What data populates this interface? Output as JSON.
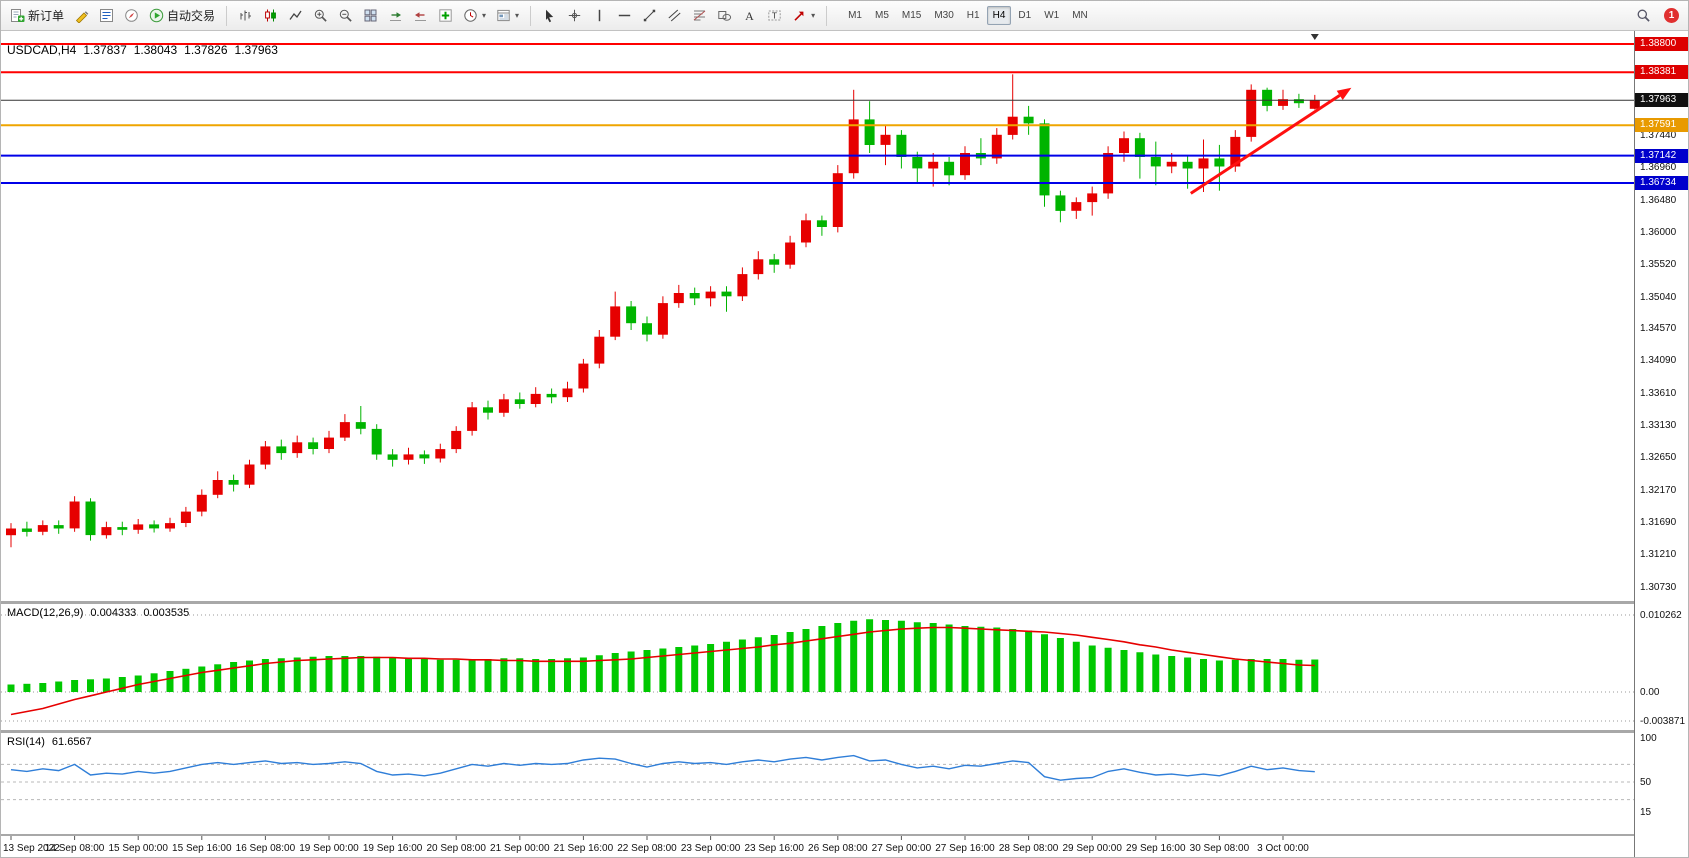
{
  "toolbar": {
    "groups": [
      {
        "type": "labeled",
        "name": "new-order-button",
        "icon": "new-order-icon",
        "label": "新订单"
      },
      {
        "type": "icon",
        "name": "metaeditor-button",
        "icon": "metaeditor-icon"
      },
      {
        "type": "icon",
        "name": "market-watch-button",
        "icon": "market-watch-icon"
      },
      {
        "type": "icon",
        "name": "navigator-button",
        "icon": "navigator-icon"
      },
      {
        "type": "labeled",
        "name": "auto-trading-button",
        "icon": "auto-trading-icon",
        "label": "自动交易"
      },
      {
        "type": "sep"
      },
      {
        "type": "icon",
        "name": "bar-chart-button",
        "icon": "bar-chart-icon"
      },
      {
        "type": "icon",
        "name": "candlestick-chart-button",
        "icon": "candlestick-chart-icon"
      },
      {
        "type": "icon",
        "name": "line-chart-button",
        "icon": "line-chart-icon"
      },
      {
        "type": "icon",
        "name": "zoom-in-button",
        "icon": "zoom-in-icon"
      },
      {
        "type": "icon",
        "name": "zoom-out-button",
        "icon": "zoom-out-icon"
      },
      {
        "type": "icon",
        "name": "tile-windows-button",
        "icon": "tile-windows-icon"
      },
      {
        "type": "icon",
        "name": "auto-scroll-button",
        "icon": "auto-scroll-icon"
      },
      {
        "type": "icon",
        "name": "chart-shift-button",
        "icon": "chart-shift-icon"
      },
      {
        "type": "icon",
        "name": "indicators-button",
        "icon": "indicators-icon"
      },
      {
        "type": "icon",
        "name": "periods-button",
        "icon": "periods-icon",
        "caret": true
      },
      {
        "type": "icon",
        "name": "templates-button",
        "icon": "templates-icon",
        "caret": true
      },
      {
        "type": "sep"
      },
      {
        "type": "icon",
        "name": "cursor-button",
        "icon": "cursor-icon"
      },
      {
        "type": "icon",
        "name": "crosshair-button",
        "icon": "crosshair-icon"
      },
      {
        "type": "icon",
        "name": "vertical-line-button",
        "icon": "vertical-line-icon"
      },
      {
        "type": "icon",
        "name": "horizontal-line-button",
        "icon": "horizontal-line-icon"
      },
      {
        "type": "icon",
        "name": "trendline-button",
        "icon": "trendline-icon"
      },
      {
        "type": "icon",
        "name": "channel-button",
        "icon": "channel-icon"
      },
      {
        "type": "icon",
        "name": "fibonacci-button",
        "icon": "fibonacci-icon"
      },
      {
        "type": "icon",
        "name": "shapes-button",
        "icon": "shapes-icon"
      },
      {
        "type": "icon",
        "name": "text-button",
        "icon": "text-icon"
      },
      {
        "type": "icon",
        "name": "text-label-button",
        "icon": "text-label-icon"
      },
      {
        "type": "icon",
        "name": "arrows-button",
        "icon": "arrows-icon",
        "caret": true
      },
      {
        "type": "sep"
      }
    ],
    "timeframes": {
      "items": [
        "M1",
        "M5",
        "M15",
        "M30",
        "H1",
        "H4",
        "D1",
        "W1",
        "MN"
      ],
      "active": "H4"
    },
    "notification_badge": "1"
  },
  "main_chart": {
    "symbol": "USDCAD,H4",
    "open": "1.37837",
    "high": "1.38043",
    "low": "1.37826",
    "close": "1.37963"
  },
  "macd": {
    "name": "MACD(12,26,9)",
    "value_main": "0.004333",
    "value_signal": "0.003535"
  },
  "rsi": {
    "name": "RSI(14)",
    "value": "61.6567"
  },
  "chart_data": [
    {
      "type": "candlestick",
      "symbol": "USDCAD",
      "timeframe": "H4",
      "ylim": [
        1.3073,
        1.388
      ],
      "colors": {
        "up": "#e60000",
        "down": "#00b400"
      },
      "candles": [
        [
          1.315,
          1.3168,
          1.3132,
          1.316
        ],
        [
          1.316,
          1.317,
          1.3148,
          1.3155
        ],
        [
          1.3155,
          1.3172,
          1.315,
          1.3165
        ],
        [
          1.3165,
          1.3172,
          1.3152,
          1.316
        ],
        [
          1.316,
          1.3208,
          1.3155,
          1.32
        ],
        [
          1.32,
          1.3205,
          1.3142,
          1.315
        ],
        [
          1.315,
          1.317,
          1.3145,
          1.3162
        ],
        [
          1.3162,
          1.317,
          1.315,
          1.3158
        ],
        [
          1.3158,
          1.3174,
          1.3152,
          1.3166
        ],
        [
          1.3166,
          1.3172,
          1.3154,
          1.316
        ],
        [
          1.316,
          1.3176,
          1.3155,
          1.3168
        ],
        [
          1.3168,
          1.3192,
          1.3162,
          1.3185
        ],
        [
          1.3185,
          1.3218,
          1.3178,
          1.321
        ],
        [
          1.321,
          1.3245,
          1.3205,
          1.3232
        ],
        [
          1.3232,
          1.324,
          1.3215,
          1.3225
        ],
        [
          1.3225,
          1.3262,
          1.322,
          1.3255
        ],
        [
          1.3255,
          1.329,
          1.3248,
          1.3282
        ],
        [
          1.3282,
          1.3292,
          1.3262,
          1.3272
        ],
        [
          1.3272,
          1.3298,
          1.3265,
          1.3288
        ],
        [
          1.3288,
          1.3295,
          1.327,
          1.3278
        ],
        [
          1.3278,
          1.3305,
          1.3272,
          1.3295
        ],
        [
          1.3295,
          1.333,
          1.329,
          1.3318
        ],
        [
          1.3318,
          1.3342,
          1.33,
          1.3308
        ],
        [
          1.3308,
          1.3315,
          1.3262,
          1.327
        ],
        [
          1.327,
          1.3278,
          1.3252,
          1.3262
        ],
        [
          1.3262,
          1.328,
          1.3255,
          1.327
        ],
        [
          1.327,
          1.3276,
          1.3256,
          1.3264
        ],
        [
          1.3264,
          1.3286,
          1.3258,
          1.3278
        ],
        [
          1.3278,
          1.3312,
          1.3272,
          1.3305
        ],
        [
          1.3305,
          1.3348,
          1.3298,
          1.334
        ],
        [
          1.334,
          1.335,
          1.3322,
          1.3332
        ],
        [
          1.3332,
          1.336,
          1.3326,
          1.3352
        ],
        [
          1.3352,
          1.3362,
          1.3338,
          1.3345
        ],
        [
          1.3345,
          1.337,
          1.334,
          1.336
        ],
        [
          1.336,
          1.3368,
          1.3346,
          1.3355
        ],
        [
          1.3355,
          1.3378,
          1.3348,
          1.3368
        ],
        [
          1.3368,
          1.3412,
          1.3362,
          1.3405
        ],
        [
          1.3405,
          1.3455,
          1.3398,
          1.3445
        ],
        [
          1.3445,
          1.3512,
          1.344,
          1.349
        ],
        [
          1.349,
          1.3498,
          1.3455,
          1.3465
        ],
        [
          1.3465,
          1.3475,
          1.3438,
          1.3448
        ],
        [
          1.3448,
          1.3505,
          1.3442,
          1.3495
        ],
        [
          1.3495,
          1.3522,
          1.3488,
          1.351
        ],
        [
          1.351,
          1.3518,
          1.3492,
          1.3502
        ],
        [
          1.3502,
          1.352,
          1.349,
          1.3512
        ],
        [
          1.3512,
          1.352,
          1.3482,
          1.3505
        ],
        [
          1.3505,
          1.3548,
          1.3498,
          1.3538
        ],
        [
          1.3538,
          1.3572,
          1.353,
          1.356
        ],
        [
          1.356,
          1.3568,
          1.354,
          1.3552
        ],
        [
          1.3552,
          1.3595,
          1.3546,
          1.3585
        ],
        [
          1.3585,
          1.3628,
          1.3578,
          1.3618
        ],
        [
          1.3618,
          1.3625,
          1.3595,
          1.3608
        ],
        [
          1.3608,
          1.37,
          1.36,
          1.3688
        ],
        [
          1.3688,
          1.3812,
          1.368,
          1.3768
        ],
        [
          1.3768,
          1.3795,
          1.3718,
          1.373
        ],
        [
          1.373,
          1.376,
          1.37,
          1.3745
        ],
        [
          1.3745,
          1.3752,
          1.3695,
          1.3712
        ],
        [
          1.3712,
          1.372,
          1.3672,
          1.3695
        ],
        [
          1.3695,
          1.3718,
          1.3668,
          1.3705
        ],
        [
          1.3705,
          1.3712,
          1.367,
          1.3685
        ],
        [
          1.3685,
          1.3728,
          1.3678,
          1.3718
        ],
        [
          1.3718,
          1.374,
          1.37,
          1.371
        ],
        [
          1.371,
          1.3755,
          1.3702,
          1.3745
        ],
        [
          1.3745,
          1.3835,
          1.3738,
          1.3772
        ],
        [
          1.3772,
          1.3788,
          1.3745,
          1.3762
        ],
        [
          1.3762,
          1.3768,
          1.3638,
          1.3655
        ],
        [
          1.3655,
          1.3662,
          1.3615,
          1.3632
        ],
        [
          1.3632,
          1.3652,
          1.362,
          1.3645
        ],
        [
          1.3645,
          1.3668,
          1.3625,
          1.3658
        ],
        [
          1.3658,
          1.3728,
          1.365,
          1.3718
        ],
        [
          1.3718,
          1.375,
          1.3705,
          1.374
        ],
        [
          1.374,
          1.3748,
          1.368,
          1.3712
        ],
        [
          1.3712,
          1.3735,
          1.367,
          1.3698
        ],
        [
          1.3698,
          1.3718,
          1.3688,
          1.3705
        ],
        [
          1.3705,
          1.3715,
          1.3665,
          1.3695
        ],
        [
          1.3695,
          1.3738,
          1.366,
          1.371
        ],
        [
          1.371,
          1.373,
          1.3662,
          1.3698
        ],
        [
          1.3698,
          1.3752,
          1.369,
          1.3742
        ],
        [
          1.3742,
          1.382,
          1.3735,
          1.3812
        ],
        [
          1.3812,
          1.3815,
          1.378,
          1.3788
        ],
        [
          1.3788,
          1.3812,
          1.3782,
          1.3798
        ],
        [
          1.3798,
          1.3806,
          1.3785,
          1.3792
        ],
        [
          1.37837,
          1.38043,
          1.37826,
          1.37963
        ]
      ],
      "levels": [
        {
          "price": 1.388,
          "label": "1.38800",
          "color": "#ff0000",
          "label_bg": "#dd0000",
          "width": 2
        },
        {
          "price": 1.38381,
          "label": "1.38381",
          "color": "#ff0000",
          "label_bg": "#dd0000",
          "width": 2
        },
        {
          "price": 1.37963,
          "label": "1.37963",
          "color": "#333333",
          "label_bg": "#111111",
          "width": 1,
          "current": true
        },
        {
          "price": 1.37591,
          "label": "1.37591",
          "color": "#efa500",
          "label_bg": "#e89a00",
          "width": 2
        },
        {
          "price": 1.37142,
          "label": "1.37142",
          "color": "#0000e8",
          "label_bg": "#0000cc",
          "width": 2
        },
        {
          "price": 1.36734,
          "label": "1.36734",
          "color": "#0000e8",
          "label_bg": "#0000cc",
          "width": 2
        }
      ],
      "y_ticks": [
        "1.37440",
        "1.36960",
        "1.36480",
        "1.36000",
        "1.35520",
        "1.35040",
        "1.34570",
        "1.34090",
        "1.33610",
        "1.33130",
        "1.32650",
        "1.32170",
        "1.31690",
        "1.31210",
        "1.30730"
      ],
      "time_labels": [
        {
          "idx": 0,
          "label": "13 Sep 2022"
        },
        {
          "idx": 4,
          "label": "14 Sep 08:00"
        },
        {
          "idx": 8,
          "label": "15 Sep 00:00"
        },
        {
          "idx": 12,
          "label": "15 Sep 16:00"
        },
        {
          "idx": 16,
          "label": "16 Sep 08:00"
        },
        {
          "idx": 20,
          "label": "19 Sep 00:00"
        },
        {
          "idx": 24,
          "label": "19 Sep 16:00"
        },
        {
          "idx": 28,
          "label": "20 Sep 08:00"
        },
        {
          "idx": 32,
          "label": "21 Sep 00:00"
        },
        {
          "idx": 36,
          "label": "21 Sep 16:00"
        },
        {
          "idx": 40,
          "label": "22 Sep 08:00"
        },
        {
          "idx": 44,
          "label": "23 Sep 00:00"
        },
        {
          "idx": 48,
          "label": "23 Sep 16:00"
        },
        {
          "idx": 52,
          "label": "26 Sep 08:00"
        },
        {
          "idx": 56,
          "label": "27 Sep 00:00"
        },
        {
          "idx": 60,
          "label": "27 Sep 16:00"
        },
        {
          "idx": 64,
          "label": "28 Sep 08:00"
        },
        {
          "idx": 68,
          "label": "29 Sep 00:00"
        },
        {
          "idx": 72,
          "label": "29 Sep 16:00"
        },
        {
          "idx": 76,
          "label": "30 Sep 08:00"
        },
        {
          "idx": 80,
          "label": "3 Oct 00:00"
        }
      ],
      "arrow": {
        "from": {
          "idx": 74.2,
          "price": 1.3658
        },
        "to": {
          "idx": 84.3,
          "price": 1.3815
        },
        "color": "#ff1010"
      },
      "marker_idx": 82
    },
    {
      "type": "bar",
      "name": "MACD(12,26,9)",
      "current": [
        0.004333,
        0.003535
      ],
      "ylim": [
        -0.003871,
        0.010262
      ],
      "grid": [
        0.010262,
        0,
        -0.003871
      ],
      "axis_labels": [
        {
          "text": "0.010262",
          "v": 0.010262
        },
        {
          "text": "0.00",
          "v": 0
        },
        {
          "text": "-0.003871",
          "v": -0.003871
        }
      ],
      "colors": {
        "histogram": "#00c800",
        "signal": "#e60000"
      },
      "values": [
        0.001,
        0.0011,
        0.0012,
        0.0014,
        0.0016,
        0.0017,
        0.0018,
        0.002,
        0.0022,
        0.0025,
        0.0028,
        0.0031,
        0.0034,
        0.0037,
        0.004,
        0.0042,
        0.0044,
        0.0045,
        0.0046,
        0.0047,
        0.0048,
        0.0048,
        0.0048,
        0.0047,
        0.0046,
        0.0045,
        0.0044,
        0.0043,
        0.0043,
        0.0044,
        0.0044,
        0.0045,
        0.0045,
        0.0044,
        0.0044,
        0.0045,
        0.0046,
        0.0049,
        0.0052,
        0.0054,
        0.0056,
        0.0058,
        0.006,
        0.0062,
        0.0064,
        0.0067,
        0.007,
        0.0073,
        0.0076,
        0.008,
        0.0084,
        0.0088,
        0.0092,
        0.0095,
        0.0097,
        0.0096,
        0.0095,
        0.0093,
        0.0092,
        0.009,
        0.0088,
        0.0087,
        0.0086,
        0.0084,
        0.0082,
        0.0077,
        0.0072,
        0.0067,
        0.0062,
        0.0059,
        0.0056,
        0.0053,
        0.005,
        0.0048,
        0.0046,
        0.0044,
        0.0042,
        0.0043,
        0.0044,
        0.0044,
        0.0044,
        0.0043,
        0.004333
      ],
      "signal": [
        -0.003,
        -0.0026,
        -0.0022,
        -0.0016,
        -0.001,
        -0.0005,
        0.0,
        0.0005,
        0.001,
        0.0014,
        0.0018,
        0.0022,
        0.0026,
        0.0029,
        0.0032,
        0.0035,
        0.0038,
        0.004,
        0.0042,
        0.0043,
        0.0044,
        0.0045,
        0.0046,
        0.0046,
        0.0046,
        0.0045,
        0.0045,
        0.0044,
        0.0044,
        0.0043,
        0.0043,
        0.0042,
        0.0042,
        0.0041,
        0.0041,
        0.0041,
        0.0041,
        0.0042,
        0.0043,
        0.0044,
        0.0046,
        0.0048,
        0.005,
        0.0052,
        0.0054,
        0.0056,
        0.0058,
        0.006,
        0.0063,
        0.0065,
        0.0068,
        0.0071,
        0.0074,
        0.0077,
        0.008,
        0.0082,
        0.0084,
        0.0085,
        0.0086,
        0.0086,
        0.0085,
        0.0084,
        0.0083,
        0.0082,
        0.0081,
        0.008,
        0.0078,
        0.0076,
        0.0073,
        0.007,
        0.0067,
        0.0063,
        0.006,
        0.0056,
        0.0053,
        0.005,
        0.0047,
        0.0044,
        0.0042,
        0.004,
        0.0038,
        0.0036,
        0.003535
      ]
    },
    {
      "type": "line",
      "name": "RSI(14)",
      "current": 61.6567,
      "ylim": [
        0,
        100
      ],
      "levels": [
        70,
        50,
        30
      ],
      "axis_labels": [
        {
          "text": "100",
          "v": 100
        },
        {
          "text": "50",
          "v": 50
        },
        {
          "text": "15",
          "v": 15
        }
      ],
      "colors": {
        "line": "#2f7ed8"
      },
      "values": [
        64,
        62,
        65,
        63,
        70,
        58,
        60,
        59,
        62,
        60,
        62,
        66,
        70,
        72,
        70,
        72,
        74,
        71,
        72,
        70,
        71,
        73,
        71,
        62,
        58,
        59,
        57,
        60,
        65,
        70,
        68,
        71,
        69,
        71,
        70,
        71,
        75,
        77,
        76,
        71,
        67,
        71,
        73,
        71,
        72,
        70,
        73,
        75,
        73,
        76,
        78,
        75,
        78,
        80,
        74,
        75,
        70,
        66,
        68,
        65,
        69,
        68,
        71,
        74,
        72,
        56,
        52,
        54,
        55,
        62,
        65,
        61,
        58,
        59,
        57,
        59,
        57,
        62,
        68,
        64,
        66,
        63,
        61.66
      ]
    }
  ]
}
